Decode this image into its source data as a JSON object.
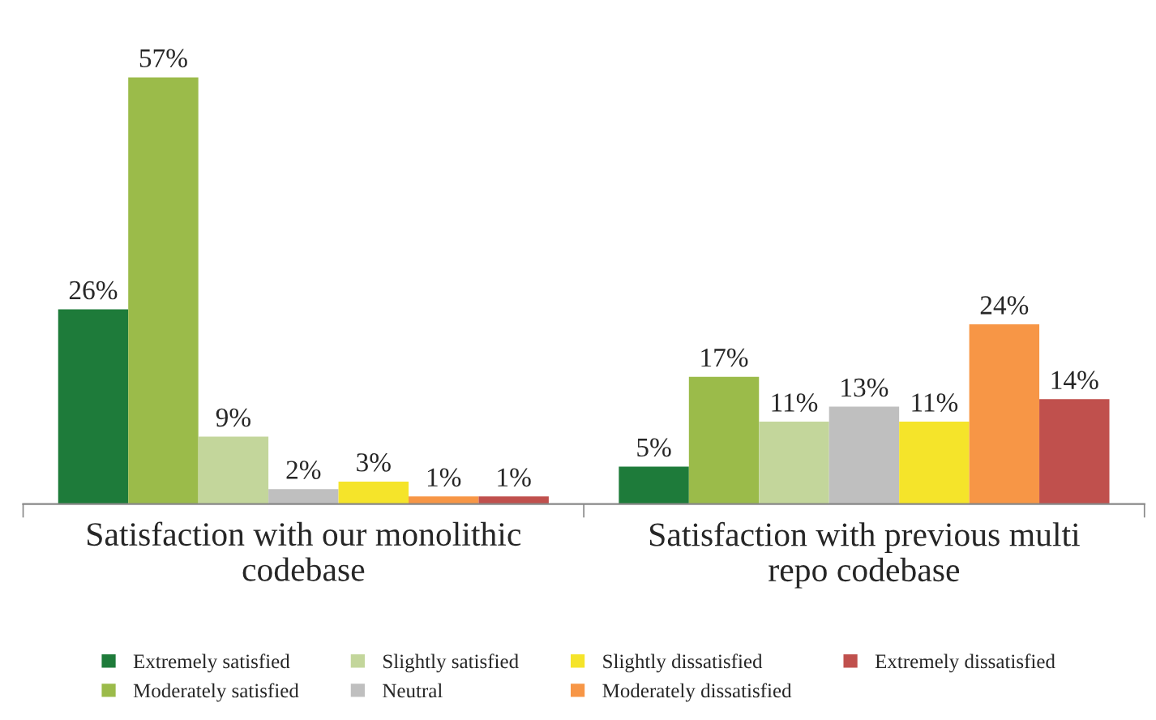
{
  "chart_data": {
    "type": "bar",
    "categories": [
      "Satisfaction with our monolithic codebase",
      "Satisfaction with previous multi repo codebase"
    ],
    "series": [
      {
        "name": "Extremely satisfied",
        "color": "#1e7b3a",
        "values": [
          26,
          5
        ],
        "value_labels": [
          "26%",
          "5%"
        ]
      },
      {
        "name": "Moderately satisfied",
        "color": "#9bbb4a",
        "values": [
          57,
          17
        ],
        "value_labels": [
          "57%",
          "17%"
        ]
      },
      {
        "name": "Slightly satisfied",
        "color": "#c3d69b",
        "values": [
          9,
          11
        ],
        "value_labels": [
          "9%",
          "11%"
        ]
      },
      {
        "name": "Neutral",
        "color": "#bfbfbf",
        "values": [
          2,
          13
        ],
        "value_labels": [
          "2%",
          "13%"
        ]
      },
      {
        "name": "Slightly dissatisfied",
        "color": "#f5e42a",
        "values": [
          3,
          11
        ],
        "value_labels": [
          "3%",
          "11%"
        ]
      },
      {
        "name": "Moderately dissatisfied",
        "color": "#f79646",
        "values": [
          1,
          24
        ],
        "value_labels": [
          "1%",
          "24%"
        ]
      },
      {
        "name": "Extremely dissatisfied",
        "color": "#c0504d",
        "values": [
          1,
          14
        ],
        "value_labels": [
          "1%",
          "14%"
        ]
      }
    ],
    "legend": "bottom",
    "grid": false
  }
}
